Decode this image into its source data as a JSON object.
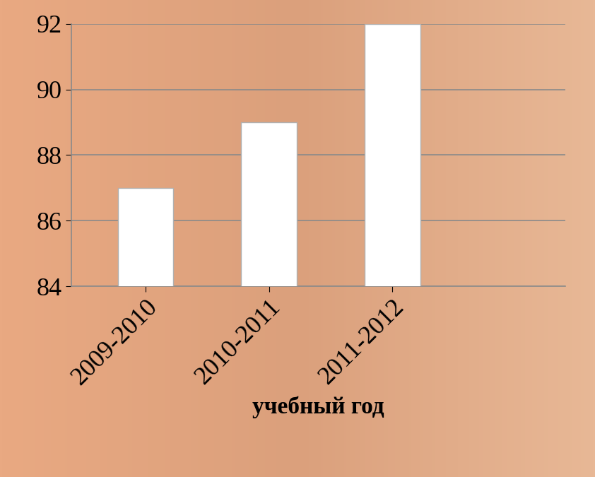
{
  "chart_data": {
    "type": "bar",
    "x_label": "учебный год",
    "categories": [
      "2009-2010",
      "2010-2011",
      "2011-2012"
    ],
    "values": [
      87,
      89,
      92
    ],
    "color": "#ffffff",
    "ylim": [
      84,
      92
    ],
    "yticks": [
      84,
      86,
      88,
      90,
      92
    ],
    "grid": true
  }
}
